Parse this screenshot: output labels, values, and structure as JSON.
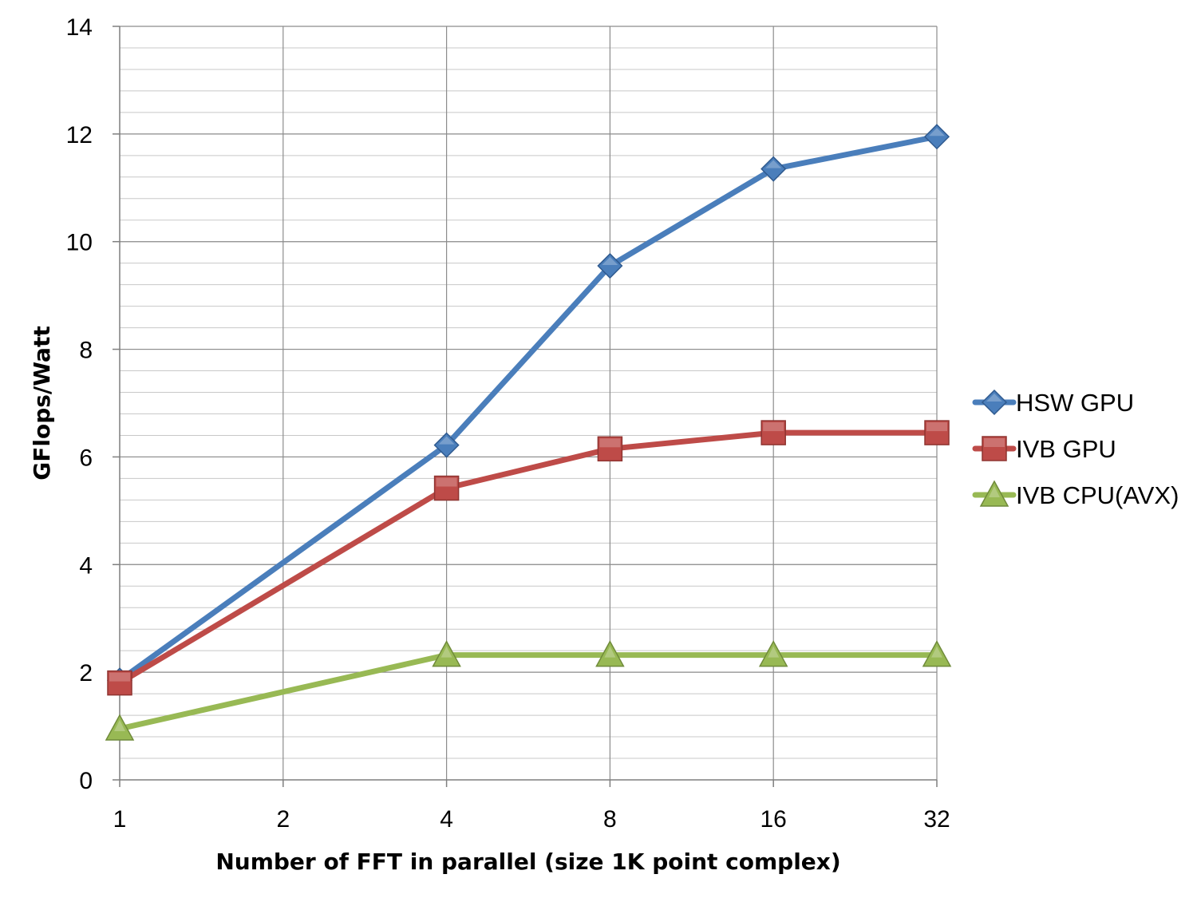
{
  "chart_data": {
    "type": "line",
    "title": "",
    "xlabel": "Number of FFT in parallel (size 1K point complex)",
    "ylabel": "GFlops/Watt",
    "categories": [
      "1",
      "2",
      "4",
      "8",
      "16",
      "32"
    ],
    "ylim": [
      0,
      14
    ],
    "y_major_ticks": [
      0,
      2,
      4,
      6,
      8,
      10,
      12,
      14
    ],
    "y_minor_step": 0.4,
    "grid": true,
    "legend_position": "right",
    "series": [
      {
        "name": "HSW GPU",
        "color": "#4A7EBB",
        "marker": "diamond",
        "values": [
          1.85,
          null,
          6.22,
          9.55,
          11.35,
          11.95
        ]
      },
      {
        "name": "IVB GPU",
        "color": "#BE4B48",
        "marker": "square",
        "values": [
          1.8,
          null,
          5.42,
          6.15,
          6.45,
          6.45
        ]
      },
      {
        "name": "IVB CPU(AVX)",
        "color": "#98B954",
        "marker": "triangle",
        "values": [
          0.95,
          null,
          2.32,
          2.32,
          2.32,
          2.32
        ]
      }
    ]
  }
}
